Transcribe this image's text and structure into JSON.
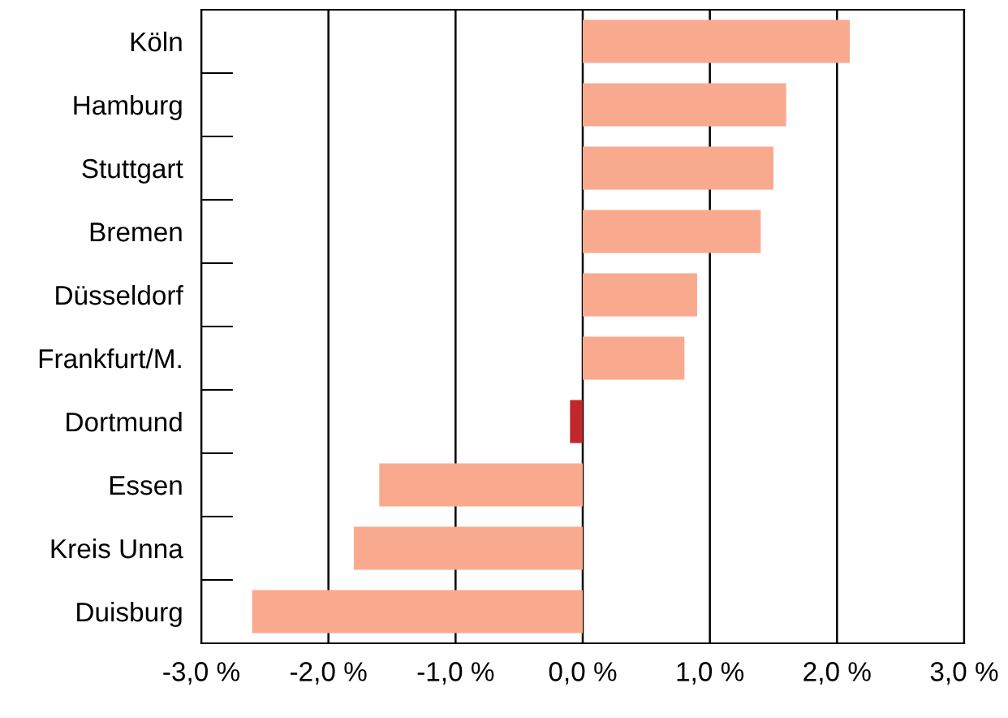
{
  "chart_data": {
    "type": "bar",
    "orientation": "horizontal",
    "categories": [
      "Köln",
      "Hamburg",
      "Stuttgart",
      "Bremen",
      "Düsseldorf",
      "Frankfurt/M.",
      "Dortmund",
      "Essen",
      "Kreis Unna",
      "Duisburg"
    ],
    "values": [
      2.1,
      1.6,
      1.5,
      1.4,
      0.9,
      0.8,
      -0.1,
      -1.6,
      -1.8,
      -2.6
    ],
    "colors": [
      "#f9aa8e",
      "#f9aa8e",
      "#f9aa8e",
      "#f9aa8e",
      "#f9aa8e",
      "#f9aa8e",
      "#c1272d",
      "#f9aa8e",
      "#f9aa8e",
      "#f9aa8e"
    ],
    "xlim": [
      -3,
      3
    ],
    "xticks": [
      {
        "value": -3,
        "label": "-3,0 %"
      },
      {
        "value": -2,
        "label": "-2,0 %"
      },
      {
        "value": -1,
        "label": "-1,0 %"
      },
      {
        "value": 0,
        "label": "0,0 %"
      },
      {
        "value": 1,
        "label": "1,0 %"
      },
      {
        "value": 2,
        "label": "2,0 %"
      },
      {
        "value": 3,
        "label": "3,0 %"
      }
    ],
    "grid": "x",
    "legend": false
  }
}
